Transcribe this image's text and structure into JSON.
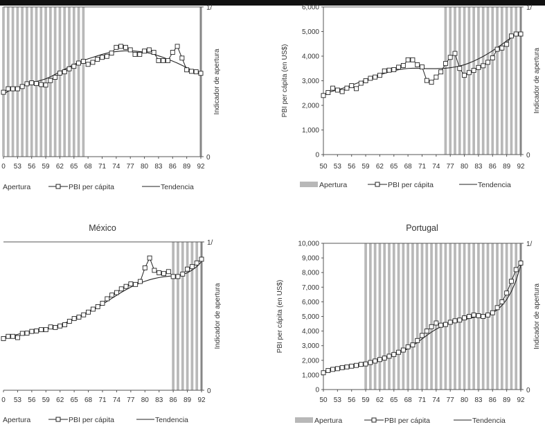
{
  "colors": {
    "band": "#b8b8b8",
    "line": "#222222",
    "axis": "#555555"
  },
  "chart_data": [
    {
      "type": "line",
      "title": "",
      "x": [
        50,
        51,
        52,
        53,
        54,
        55,
        56,
        57,
        58,
        59,
        60,
        61,
        62,
        63,
        64,
        65,
        66,
        67,
        68,
        69,
        70,
        71,
        72,
        73,
        74,
        75,
        76,
        77,
        78,
        79,
        80,
        81,
        82,
        83,
        84,
        85,
        86,
        87,
        88,
        89,
        90,
        91,
        92
      ],
      "xticks": [
        "0",
        "53",
        "56",
        "59",
        "62",
        "65",
        "68",
        "71",
        "74",
        "77",
        "80",
        "83",
        "86",
        "89",
        "92"
      ],
      "yticks": [],
      "ylabel": "",
      "y2label": "Indicador de apertura",
      "y2ticks": [
        "1/",
        "0"
      ],
      "ylim": [
        0,
        6000
      ],
      "apertura": [
        1,
        1,
        1,
        1,
        1,
        1,
        1,
        1,
        1,
        1,
        1,
        1,
        1,
        1,
        1,
        1,
        1,
        1,
        0,
        0,
        0,
        0,
        0,
        0,
        0,
        0,
        0,
        0,
        0,
        0,
        0,
        0,
        0,
        0,
        0,
        0,
        0,
        0,
        0,
        0,
        0,
        0,
        1
      ],
      "series": [
        {
          "name": "PBI per cápita",
          "values": [
            2580,
            2720,
            2720,
            2720,
            2810,
            2920,
            2960,
            2930,
            2890,
            2870,
            3050,
            3180,
            3350,
            3400,
            3520,
            3620,
            3750,
            3820,
            3700,
            3780,
            3900,
            3980,
            4020,
            4150,
            4380,
            4420,
            4380,
            4280,
            4100,
            4100,
            4230,
            4280,
            4180,
            3850,
            3850,
            3850,
            4180,
            4420,
            3950,
            3480,
            3420,
            3400,
            3340
          ]
        },
        {
          "name": "Tendencia",
          "values": [
            2500,
            2620,
            2720,
            2780,
            2840,
            2900,
            2960,
            3010,
            3060,
            3120,
            3200,
            3300,
            3400,
            3500,
            3600,
            3690,
            3780,
            3850,
            3920,
            3980,
            4040,
            4100,
            4150,
            4190,
            4210,
            4230,
            4240,
            4240,
            4230,
            4210,
            4190,
            4150,
            4100,
            4040,
            3980,
            3900,
            3830,
            3750,
            3660,
            3570,
            3480,
            3400,
            3330
          ]
        }
      ],
      "legend": [
        "Apertura",
        "PBI per cápita",
        "Tendencia"
      ]
    },
    {
      "type": "line",
      "title": "",
      "x": [
        50,
        51,
        52,
        53,
        54,
        55,
        56,
        57,
        58,
        59,
        60,
        61,
        62,
        63,
        64,
        65,
        66,
        67,
        68,
        69,
        70,
        71,
        72,
        73,
        74,
        75,
        76,
        77,
        78,
        79,
        80,
        81,
        82,
        83,
        84,
        85,
        86,
        87,
        88,
        89,
        90,
        91,
        92
      ],
      "xticks": [
        "50",
        "53",
        "56",
        "59",
        "62",
        "65",
        "68",
        "71",
        "74",
        "77",
        "80",
        "83",
        "86",
        "89",
        "92"
      ],
      "yticks": [
        "0",
        "1,000",
        "2,000",
        "3,000",
        "4,000",
        "5,000",
        "6,000"
      ],
      "ylabel": "PBI per cápita (en US$)",
      "y2label": "Indicador de apertura",
      "y2ticks": [
        "1/",
        "0"
      ],
      "ylim": [
        0,
        6000
      ],
      "apertura": [
        0,
        0,
        0,
        0,
        0,
        0,
        0,
        0,
        0,
        0,
        0,
        0,
        0,
        0,
        0,
        0,
        0,
        0,
        0,
        0,
        0,
        0,
        0,
        0,
        0,
        0,
        1,
        1,
        1,
        1,
        1,
        1,
        1,
        1,
        1,
        1,
        1,
        1,
        1,
        1,
        1,
        1,
        1
      ],
      "series": [
        {
          "name": "PBI per cápita",
          "values": [
            2400,
            2520,
            2700,
            2620,
            2560,
            2700,
            2800,
            2680,
            2900,
            3000,
            3100,
            3150,
            3220,
            3400,
            3430,
            3450,
            3550,
            3620,
            3850,
            3850,
            3650,
            3560,
            3010,
            2940,
            3150,
            3360,
            3700,
            3950,
            4110,
            3500,
            3220,
            3330,
            3420,
            3540,
            3610,
            3750,
            3930,
            4280,
            4330,
            4480,
            4820,
            4900,
            4900
          ]
        },
        {
          "name": "Tendencia",
          "values": [
            2450,
            2520,
            2580,
            2630,
            2690,
            2750,
            2820,
            2890,
            2960,
            3030,
            3100,
            3170,
            3240,
            3300,
            3360,
            3410,
            3450,
            3480,
            3500,
            3510,
            3510,
            3500,
            3490,
            3490,
            3490,
            3500,
            3510,
            3530,
            3560,
            3600,
            3650,
            3720,
            3800,
            3890,
            3990,
            4100,
            4220,
            4350,
            4480,
            4620,
            4760,
            4880,
            4950
          ]
        }
      ],
      "legend": [
        "Apertura",
        "PBI per cápita",
        "Tendencia"
      ]
    },
    {
      "type": "line",
      "title": "México",
      "x": [
        50,
        51,
        52,
        53,
        54,
        55,
        56,
        57,
        58,
        59,
        60,
        61,
        62,
        63,
        64,
        65,
        66,
        67,
        68,
        69,
        70,
        71,
        72,
        73,
        74,
        75,
        76,
        77,
        78,
        79,
        80,
        81,
        82,
        83,
        84,
        85,
        86,
        87,
        88,
        89,
        90,
        91,
        92
      ],
      "xticks": [
        "0",
        "53",
        "56",
        "59",
        "62",
        "65",
        "68",
        "71",
        "74",
        "77",
        "80",
        "83",
        "86",
        "89",
        "92"
      ],
      "yticks": [],
      "ylabel": "",
      "y2label": "Indicador de apertura",
      "y2ticks": [
        "1/",
        "0"
      ],
      "ylim": [
        0,
        6000
      ],
      "apertura": [
        0,
        0,
        0,
        0,
        0,
        0,
        0,
        0,
        0,
        0,
        0,
        0,
        0,
        0,
        0,
        0,
        0,
        0,
        0,
        0,
        0,
        0,
        0,
        0,
        0,
        0,
        0,
        0,
        0,
        0,
        0,
        0,
        0,
        0,
        0,
        0,
        1,
        1,
        1,
        1,
        1,
        1,
        1
      ],
      "series": [
        {
          "name": "PBI per cápita",
          "values": [
            2090,
            2180,
            2180,
            2130,
            2300,
            2310,
            2380,
            2400,
            2450,
            2450,
            2560,
            2540,
            2600,
            2650,
            2790,
            2900,
            2960,
            3050,
            3160,
            3280,
            3380,
            3520,
            3700,
            3850,
            3950,
            4100,
            4200,
            4300,
            4280,
            4400,
            4950,
            5350,
            4850,
            4750,
            4720,
            4800,
            4600,
            4600,
            4700,
            4900,
            5000,
            5150,
            5300
          ]
        },
        {
          "name": "Tendencia",
          "values": [
            2100,
            2160,
            2210,
            2260,
            2310,
            2350,
            2390,
            2430,
            2470,
            2510,
            2550,
            2600,
            2660,
            2720,
            2800,
            2880,
            2960,
            3050,
            3150,
            3250,
            3360,
            3480,
            3600,
            3720,
            3840,
            3960,
            4070,
            4170,
            4260,
            4340,
            4410,
            4470,
            4520,
            4560,
            4590,
            4610,
            4630,
            4650,
            4690,
            4750,
            4860,
            5000,
            5200
          ]
        }
      ],
      "legend": [
        "Apertura",
        "PBI per cápita",
        "Tendencia"
      ]
    },
    {
      "type": "line",
      "title": "Portugal",
      "x": [
        50,
        51,
        52,
        53,
        54,
        55,
        56,
        57,
        58,
        59,
        60,
        61,
        62,
        63,
        64,
        65,
        66,
        67,
        68,
        69,
        70,
        71,
        72,
        73,
        74,
        75,
        76,
        77,
        78,
        79,
        80,
        81,
        82,
        83,
        84,
        85,
        86,
        87,
        88,
        89,
        90,
        91,
        92
      ],
      "xticks": [
        "50",
        "53",
        "56",
        "59",
        "62",
        "65",
        "68",
        "71",
        "74",
        "77",
        "80",
        "83",
        "86",
        "89",
        "92"
      ],
      "yticks": [
        "0",
        "1,000",
        "2,000",
        "3,000",
        "4,000",
        "5,000",
        "6,000",
        "7,000",
        "8,000",
        "9,000",
        "10,000"
      ],
      "ylabel": "PBI per cápita (en US$)",
      "y2label": "Indicador de apertura",
      "y2ticks": [
        "1/",
        "0"
      ],
      "ylim": [
        0,
        10000
      ],
      "apertura": [
        0,
        0,
        0,
        0,
        0,
        0,
        0,
        0,
        0,
        1,
        1,
        1,
        1,
        1,
        1,
        1,
        1,
        1,
        1,
        1,
        1,
        1,
        1,
        1,
        1,
        1,
        1,
        1,
        1,
        1,
        1,
        1,
        1,
        1,
        1,
        1,
        1,
        1,
        1,
        1,
        1,
        1,
        1
      ],
      "series": [
        {
          "name": "PBI per cápita",
          "values": [
            1150,
            1300,
            1380,
            1430,
            1500,
            1550,
            1600,
            1650,
            1720,
            1750,
            1850,
            1950,
            2050,
            2150,
            2280,
            2400,
            2550,
            2700,
            2920,
            3050,
            3350,
            3700,
            4000,
            4300,
            4550,
            4400,
            4450,
            4600,
            4700,
            4750,
            4900,
            5000,
            5100,
            5050,
            5000,
            5100,
            5250,
            5600,
            6000,
            6600,
            7400,
            8200,
            8650
          ]
        },
        {
          "name": "Tendencia",
          "values": [
            1200,
            1280,
            1350,
            1410,
            1470,
            1520,
            1570,
            1620,
            1680,
            1740,
            1820,
            1900,
            1990,
            2090,
            2200,
            2320,
            2460,
            2620,
            2800,
            3000,
            3220,
            3460,
            3700,
            3930,
            4130,
            4290,
            4420,
            4530,
            4620,
            4700,
            4780,
            4860,
            4930,
            4990,
            5050,
            5130,
            5250,
            5450,
            5750,
            6150,
            6700,
            7450,
            8500
          ]
        }
      ],
      "legend": [
        "Apertura",
        "PBI per cápita",
        "Tendencia"
      ]
    }
  ]
}
